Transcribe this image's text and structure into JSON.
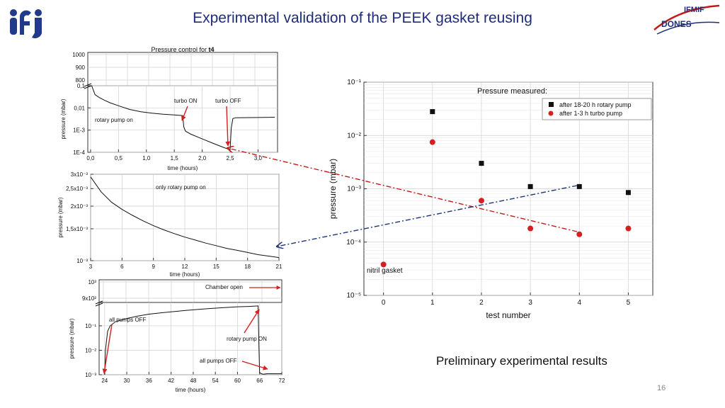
{
  "slide": {
    "title": "Experimental validation of the PEEK gasket reusing",
    "caption": "Preliminary experimental results",
    "page_number": "16",
    "logo_left": "ifj",
    "logo_right_top": "IFMIF",
    "logo_right_bottom": "DONES",
    "colors": {
      "title": "#1f2c7a",
      "red_series": "#d42020",
      "black_series": "#111111",
      "arrow_red": "#c41a1a",
      "arrow_blue": "#1d3579",
      "grid": "#cfcfcf"
    }
  },
  "chart_data": [
    {
      "id": "t4",
      "type": "line",
      "title_prefix": "Pressure control for ",
      "title_bold": "t4",
      "xlabel": "time (hours)",
      "ylabel": "pressure (mbar)",
      "xlim": [
        -0.05,
        3.35
      ],
      "xticks": [
        0.0,
        0.5,
        1.0,
        1.5,
        2.0,
        2.5,
        3.0
      ],
      "xtick_labels": [
        "0,0",
        "0,5",
        "1,0",
        "1,5",
        "2,0",
        "2,5",
        "3,0"
      ],
      "ylim_log": [
        0.0001,
        0.1
      ],
      "ytick_labels": [
        {
          "v": 0.1,
          "t": "0,1"
        },
        {
          "v": 0.01,
          "t": "0,01"
        },
        {
          "v": 0.001,
          "t": "1E-3"
        },
        {
          "v": 0.0001,
          "t": "1E-4"
        }
      ],
      "upper_ticks": [
        {
          "v": 1000,
          "t": "1000"
        },
        {
          "v": 900,
          "t": "900"
        },
        {
          "v": 800,
          "t": "800"
        }
      ],
      "series": [
        {
          "name": "pressure t4",
          "x": [
            0.0,
            0.02,
            0.08,
            0.15,
            0.25,
            0.35,
            0.5,
            0.7,
            0.9,
            1.1,
            1.3,
            1.5,
            1.6,
            1.65,
            1.67,
            1.7,
            1.8,
            2.0,
            2.2,
            2.4,
            2.5,
            2.52,
            2.55,
            2.6,
            3.0,
            3.3
          ],
          "y": [
            0.1,
            0.1,
            0.04,
            0.03,
            0.022,
            0.017,
            0.0125,
            0.0085,
            0.0067,
            0.0058,
            0.0052,
            0.0048,
            0.0046,
            0.0045,
            0.0014,
            0.0009,
            0.00065,
            0.0004,
            0.00025,
            0.00016,
            0.00013,
            0.0012,
            0.0033,
            0.0036,
            0.0037,
            0.0038
          ]
        }
      ],
      "annotations": [
        "turbo ON",
        "turbo OFF",
        "rotary pump on"
      ]
    },
    {
      "id": "rotary",
      "type": "line",
      "xlabel": "time (hours)",
      "ylabel": "pressure (mbar)",
      "xlim": [
        3,
        21
      ],
      "xticks": [
        3,
        6,
        9,
        12,
        15,
        18,
        21
      ],
      "xtick_labels": [
        "3",
        "6",
        "9",
        "12",
        "15",
        "18",
        "21"
      ],
      "ylim_log": [
        0.001,
        0.003
      ],
      "ytick_labels": [
        {
          "v": 0.003,
          "t": "3x10⁻³"
        },
        {
          "v": 0.0025,
          "t": "2,5x10⁻³"
        },
        {
          "v": 0.002,
          "t": "2x10⁻³"
        },
        {
          "v": 0.0015,
          "t": "1,5x10⁻³"
        },
        {
          "v": 0.001,
          "t": "10⁻³"
        }
      ],
      "series": [
        {
          "name": "pressure rotary",
          "x": [
            3,
            4,
            5,
            6,
            7,
            8,
            9,
            10,
            11,
            12,
            13,
            14,
            15,
            16,
            17,
            18,
            19,
            20,
            21
          ],
          "y": [
            0.0029,
            0.0024,
            0.0021,
            0.00192,
            0.00178,
            0.00166,
            0.00156,
            0.00148,
            0.00141,
            0.00135,
            0.0013,
            0.00125,
            0.00121,
            0.00117,
            0.00114,
            0.00111,
            0.00108,
            0.00106,
            0.00104
          ]
        }
      ],
      "annotations": [
        "only rotary pump on"
      ]
    },
    {
      "id": "chamber",
      "type": "line",
      "xlabel": "time (hours)",
      "ylabel": "pressure (mbar)",
      "xlim": [
        22.5,
        72
      ],
      "xticks": [
        24,
        30,
        36,
        42,
        48,
        54,
        60,
        66,
        72
      ],
      "xtick_labels": [
        "24",
        "30",
        "36",
        "42",
        "48",
        "54",
        "60",
        "66",
        "72"
      ],
      "ylim_log": [
        0.001,
        0.9
      ],
      "ytick_labels": [
        {
          "v": 0.1,
          "t": "10⁻¹"
        },
        {
          "v": 0.01,
          "t": "10⁻²"
        },
        {
          "v": 0.001,
          "t": "10⁻³"
        }
      ],
      "upper_ticks": [
        {
          "v": 1000,
          "t": "10³"
        },
        {
          "v": 900,
          "t": "9x10²"
        }
      ],
      "series": [
        {
          "name": "pressure chamber",
          "x": [
            24,
            24.2,
            24.8,
            25.5,
            27,
            30,
            33,
            36,
            40,
            44,
            48,
            52,
            56,
            60,
            63,
            65.6,
            65.8,
            66,
            66.5,
            67,
            68,
            70,
            72
          ],
          "y": [
            0.001,
            0.01,
            0.06,
            0.1,
            0.15,
            0.2,
            0.25,
            0.3,
            0.35,
            0.4,
            0.45,
            0.5,
            0.55,
            0.6,
            0.62,
            0.65,
            0.015,
            0.0012,
            0.0011,
            0.00105,
            0.0011,
            0.0011,
            0.0011
          ]
        }
      ],
      "annotations": [
        "Chamber open",
        "all pumps OFF",
        "rotary pump ON",
        "all pumps OFF"
      ]
    },
    {
      "id": "measured",
      "type": "scatter",
      "title": "Pressure measured:",
      "xlabel": "test number",
      "ylabel": "pressure (mbar)",
      "xlim": [
        -0.4,
        5.5
      ],
      "xticks": [
        0,
        1,
        2,
        3,
        4,
        5
      ],
      "ylim_log": [
        1e-05,
        0.1
      ],
      "ytick_labels": [
        {
          "v": 0.1,
          "t": "10⁻¹"
        },
        {
          "v": 0.01,
          "t": "10⁻²"
        },
        {
          "v": 0.001,
          "t": "10⁻³"
        },
        {
          "v": 0.0001,
          "t": "10⁻⁴"
        },
        {
          "v": 1e-05,
          "t": "10⁻⁵"
        }
      ],
      "series": [
        {
          "name": "after 18-20 h rotary pump",
          "marker": "square",
          "x": [
            1,
            2,
            3,
            4,
            5
          ],
          "y": [
            0.028,
            0.003,
            0.0011,
            0.0011,
            0.00085
          ]
        },
        {
          "name": "after 1-3 h turbo pump",
          "marker": "circle",
          "x": [
            0,
            1,
            2,
            3,
            4,
            5
          ],
          "y": [
            3.8e-05,
            0.0075,
            0.0006,
            0.00018,
            0.00014,
            0.00018
          ]
        }
      ],
      "annotations": [
        "nitril gasket"
      ]
    }
  ]
}
